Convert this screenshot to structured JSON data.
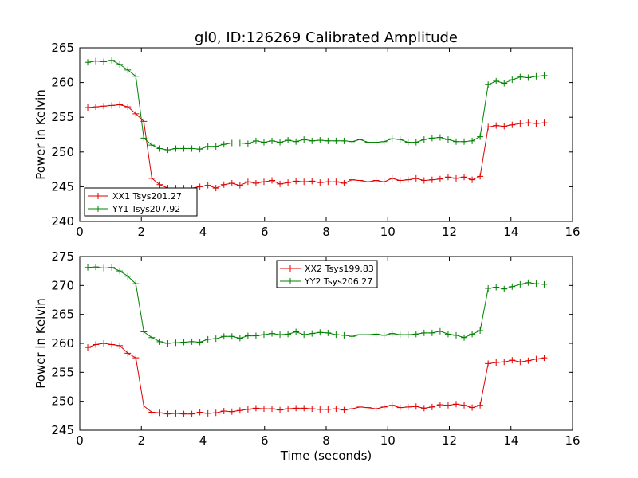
{
  "chart_data": [
    {
      "type": "line",
      "title": "gl0, ID:126269 Calibrated Amplitude",
      "xlabel": "",
      "ylabel": "Power in Kelvin",
      "xlim": [
        0,
        16
      ],
      "ylim": [
        240,
        265
      ],
      "xticks": [
        0,
        2,
        4,
        6,
        8,
        10,
        12,
        14,
        16
      ],
      "yticks": [
        240,
        245,
        250,
        255,
        260,
        265
      ],
      "legend_position": "lower-left",
      "x": [
        0.26,
        0.52,
        0.78,
        1.04,
        1.3,
        1.56,
        1.82,
        2.08,
        2.34,
        2.6,
        2.86,
        3.12,
        3.38,
        3.64,
        3.9,
        4.16,
        4.42,
        4.68,
        4.94,
        5.2,
        5.46,
        5.72,
        5.98,
        6.24,
        6.5,
        6.76,
        7.02,
        7.28,
        7.54,
        7.8,
        8.06,
        8.32,
        8.58,
        8.84,
        9.1,
        9.36,
        9.62,
        9.88,
        10.14,
        10.4,
        10.66,
        10.92,
        11.18,
        11.44,
        11.7,
        11.96,
        12.22,
        12.48,
        12.74,
        13.0,
        13.26,
        13.52,
        13.78,
        14.04,
        14.3,
        14.56,
        14.82,
        15.08
      ],
      "series": [
        {
          "name": "XX1 Tsys201.27",
          "color": "#e00000",
          "values": [
            256.4,
            256.5,
            256.6,
            256.7,
            256.8,
            256.5,
            255.5,
            254.4,
            246.2,
            245.3,
            244.8,
            244.8,
            244.8,
            244.8,
            245.0,
            245.2,
            244.8,
            245.3,
            245.5,
            245.2,
            245.7,
            245.5,
            245.7,
            245.9,
            245.4,
            245.6,
            245.8,
            245.7,
            245.8,
            245.6,
            245.7,
            245.7,
            245.5,
            246.0,
            245.9,
            245.7,
            245.9,
            245.7,
            246.2,
            245.9,
            246.0,
            246.2,
            245.9,
            246.0,
            246.1,
            246.4,
            246.2,
            246.4,
            246.0,
            246.5,
            253.6,
            253.8,
            253.7,
            253.9,
            254.1,
            254.2,
            254.1,
            254.2
          ]
        },
        {
          "name": "YY1 Tsys207.92",
          "color": "#008000",
          "values": [
            262.9,
            263.1,
            263.0,
            263.2,
            262.6,
            261.8,
            260.9,
            252.0,
            251.0,
            250.5,
            250.3,
            250.5,
            250.5,
            250.5,
            250.4,
            250.8,
            250.8,
            251.1,
            251.3,
            251.3,
            251.2,
            251.6,
            251.4,
            251.6,
            251.4,
            251.7,
            251.5,
            251.8,
            251.6,
            251.7,
            251.6,
            251.6,
            251.6,
            251.5,
            251.8,
            251.4,
            251.4,
            251.5,
            251.9,
            251.8,
            251.4,
            251.4,
            251.8,
            252.0,
            252.1,
            251.8,
            251.5,
            251.5,
            251.6,
            252.2,
            259.7,
            260.2,
            259.9,
            260.4,
            260.8,
            260.7,
            260.9,
            261.0
          ]
        }
      ]
    },
    {
      "type": "line",
      "title": "",
      "xlabel": "Time (seconds)",
      "ylabel": "Power in Kelvin",
      "xlim": [
        0,
        16
      ],
      "ylim": [
        245,
        275
      ],
      "xticks": [
        0,
        2,
        4,
        6,
        8,
        10,
        12,
        14,
        16
      ],
      "yticks": [
        245,
        250,
        255,
        260,
        265,
        270,
        275
      ],
      "legend_position": "top-center",
      "x": [
        0.26,
        0.52,
        0.78,
        1.04,
        1.3,
        1.56,
        1.82,
        2.08,
        2.34,
        2.6,
        2.86,
        3.12,
        3.38,
        3.64,
        3.9,
        4.16,
        4.42,
        4.68,
        4.94,
        5.2,
        5.46,
        5.72,
        5.98,
        6.24,
        6.5,
        6.76,
        7.02,
        7.28,
        7.54,
        7.8,
        8.06,
        8.32,
        8.58,
        8.84,
        9.1,
        9.36,
        9.62,
        9.88,
        10.14,
        10.4,
        10.66,
        10.92,
        11.18,
        11.44,
        11.7,
        11.96,
        12.22,
        12.48,
        12.74,
        13.0,
        13.26,
        13.52,
        13.78,
        14.04,
        14.3,
        14.56,
        14.82,
        15.08
      ],
      "series": [
        {
          "name": "XX2 Tsys199.83",
          "color": "#e00000",
          "values": [
            259.3,
            259.8,
            260.0,
            259.8,
            259.6,
            258.3,
            257.5,
            249.2,
            248.1,
            248.0,
            247.8,
            247.9,
            247.8,
            247.8,
            248.1,
            247.9,
            248.0,
            248.3,
            248.2,
            248.4,
            248.6,
            248.8,
            248.7,
            248.7,
            248.5,
            248.7,
            248.8,
            248.8,
            248.7,
            248.6,
            248.6,
            248.7,
            248.5,
            248.7,
            249.0,
            248.9,
            248.7,
            249.0,
            249.3,
            248.9,
            249.0,
            249.1,
            248.8,
            249.0,
            249.4,
            249.3,
            249.5,
            249.3,
            248.9,
            249.3,
            256.5,
            256.7,
            256.8,
            257.1,
            256.8,
            257.0,
            257.3,
            257.5
          ]
        },
        {
          "name": "YY2 Tsys206.27",
          "color": "#008000",
          "values": [
            273.1,
            273.2,
            273.0,
            273.1,
            272.5,
            271.6,
            270.3,
            262.0,
            261.0,
            260.3,
            260.0,
            260.1,
            260.2,
            260.3,
            260.2,
            260.7,
            260.8,
            261.2,
            261.2,
            260.9,
            261.3,
            261.3,
            261.5,
            261.7,
            261.5,
            261.6,
            262.0,
            261.5,
            261.7,
            261.9,
            261.8,
            261.5,
            261.4,
            261.2,
            261.5,
            261.5,
            261.6,
            261.4,
            261.7,
            261.5,
            261.5,
            261.6,
            261.8,
            261.8,
            262.1,
            261.6,
            261.4,
            261.0,
            261.6,
            262.2,
            269.5,
            269.7,
            269.4,
            269.8,
            270.2,
            270.5,
            270.3,
            270.2
          ]
        }
      ]
    }
  ]
}
